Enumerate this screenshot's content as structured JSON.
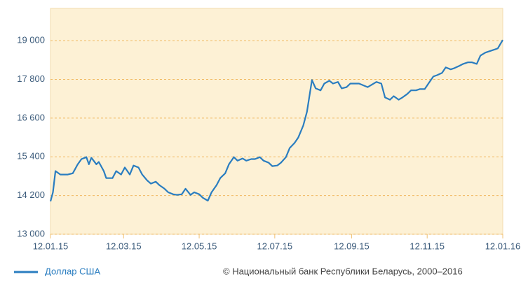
{
  "chart_data": {
    "type": "line",
    "source": "© Национальный банк Республики Беларусь, 2000–2016",
    "x": [
      "2015-01-12",
      "2015-01-14",
      "2015-01-16",
      "2015-01-20",
      "2015-01-26",
      "2015-01-30",
      "2015-02-03",
      "2015-02-06",
      "2015-02-10",
      "2015-02-12",
      "2015-02-14",
      "2015-02-18",
      "2015-02-20",
      "2015-02-24",
      "2015-02-26",
      "2015-03-03",
      "2015-03-06",
      "2015-03-10",
      "2015-03-13",
      "2015-03-17",
      "2015-03-20",
      "2015-03-24",
      "2015-03-27",
      "2015-03-31",
      "2015-04-03",
      "2015-04-07",
      "2015-04-10",
      "2015-04-14",
      "2015-04-17",
      "2015-04-21",
      "2015-04-24",
      "2015-04-28",
      "2015-05-01",
      "2015-05-05",
      "2015-05-08",
      "2015-05-12",
      "2015-05-15",
      "2015-05-19",
      "2015-05-22",
      "2015-05-26",
      "2015-05-29",
      "2015-06-02",
      "2015-06-05",
      "2015-06-09",
      "2015-06-12",
      "2015-06-16",
      "2015-06-19",
      "2015-06-23",
      "2015-06-26",
      "2015-06-30",
      "2015-07-03",
      "2015-07-07",
      "2015-07-10",
      "2015-07-14",
      "2015-07-17",
      "2015-07-21",
      "2015-07-24",
      "2015-07-28",
      "2015-07-31",
      "2015-08-04",
      "2015-08-07",
      "2015-08-11",
      "2015-08-14",
      "2015-08-18",
      "2015-08-21",
      "2015-08-25",
      "2015-08-28",
      "2015-09-01",
      "2015-09-04",
      "2015-09-08",
      "2015-09-11",
      "2015-09-15",
      "2015-09-18",
      "2015-09-25",
      "2015-10-02",
      "2015-10-06",
      "2015-10-09",
      "2015-10-13",
      "2015-10-16",
      "2015-10-20",
      "2015-10-23",
      "2015-10-27",
      "2015-10-30",
      "2015-11-03",
      "2015-11-06",
      "2015-11-10",
      "2015-11-13",
      "2015-11-17",
      "2015-11-20",
      "2015-11-24",
      "2015-11-27",
      "2015-12-01",
      "2015-12-04",
      "2015-12-08",
      "2015-12-11",
      "2015-12-15",
      "2015-12-18",
      "2015-12-22",
      "2015-12-25",
      "2015-12-29",
      "2016-01-05",
      "2016-01-08",
      "2016-01-12"
    ],
    "series": [
      {
        "name": "Доллар США",
        "color": "#2a7dc0",
        "values": [
          14020,
          14300,
          14960,
          14850,
          14850,
          14890,
          15170,
          15330,
          15390,
          15170,
          15370,
          15170,
          15240,
          14960,
          14740,
          14740,
          14960,
          14850,
          15070,
          14850,
          15130,
          15070,
          14850,
          14670,
          14570,
          14630,
          14520,
          14410,
          14300,
          14240,
          14220,
          14240,
          14410,
          14220,
          14300,
          14240,
          14130,
          14040,
          14300,
          14520,
          14740,
          14890,
          15170,
          15390,
          15280,
          15350,
          15280,
          15330,
          15330,
          15390,
          15280,
          15220,
          15110,
          15130,
          15220,
          15390,
          15670,
          15830,
          16000,
          16370,
          16800,
          17780,
          17520,
          17460,
          17670,
          17760,
          17670,
          17720,
          17520,
          17560,
          17670,
          17670,
          17670,
          17560,
          17720,
          17670,
          17240,
          17170,
          17280,
          17170,
          17240,
          17350,
          17460,
          17460,
          17500,
          17500,
          17670,
          17890,
          17930,
          18000,
          18170,
          18110,
          18150,
          18220,
          18280,
          18330,
          18330,
          18280,
          18540,
          18630,
          18720,
          18760,
          19020
        ]
      }
    ],
    "xlim": [
      "2015-01-12",
      "2016-01-12"
    ],
    "xticks": [
      {
        "value": "2015-01-12",
        "label": "12.01.15"
      },
      {
        "value": "2015-03-12",
        "label": "12.03.15"
      },
      {
        "value": "2015-05-12",
        "label": "12.05.15"
      },
      {
        "value": "2015-07-12",
        "label": "12.07.15"
      },
      {
        "value": "2015-09-12",
        "label": "12.09.15"
      },
      {
        "value": "2015-11-12",
        "label": "12.11.15"
      },
      {
        "value": "2016-01-12",
        "label": "12.01.16"
      }
    ],
    "ylim": [
      13000,
      20000
    ],
    "yticks": [
      {
        "value": 13000,
        "label": "13 000"
      },
      {
        "value": 14200,
        "label": "14 200"
      },
      {
        "value": 15400,
        "label": "15 400"
      },
      {
        "value": 16600,
        "label": "16 600"
      },
      {
        "value": 17800,
        "label": "17 800"
      },
      {
        "value": 19000,
        "label": "19 000"
      }
    ],
    "grid": true
  }
}
